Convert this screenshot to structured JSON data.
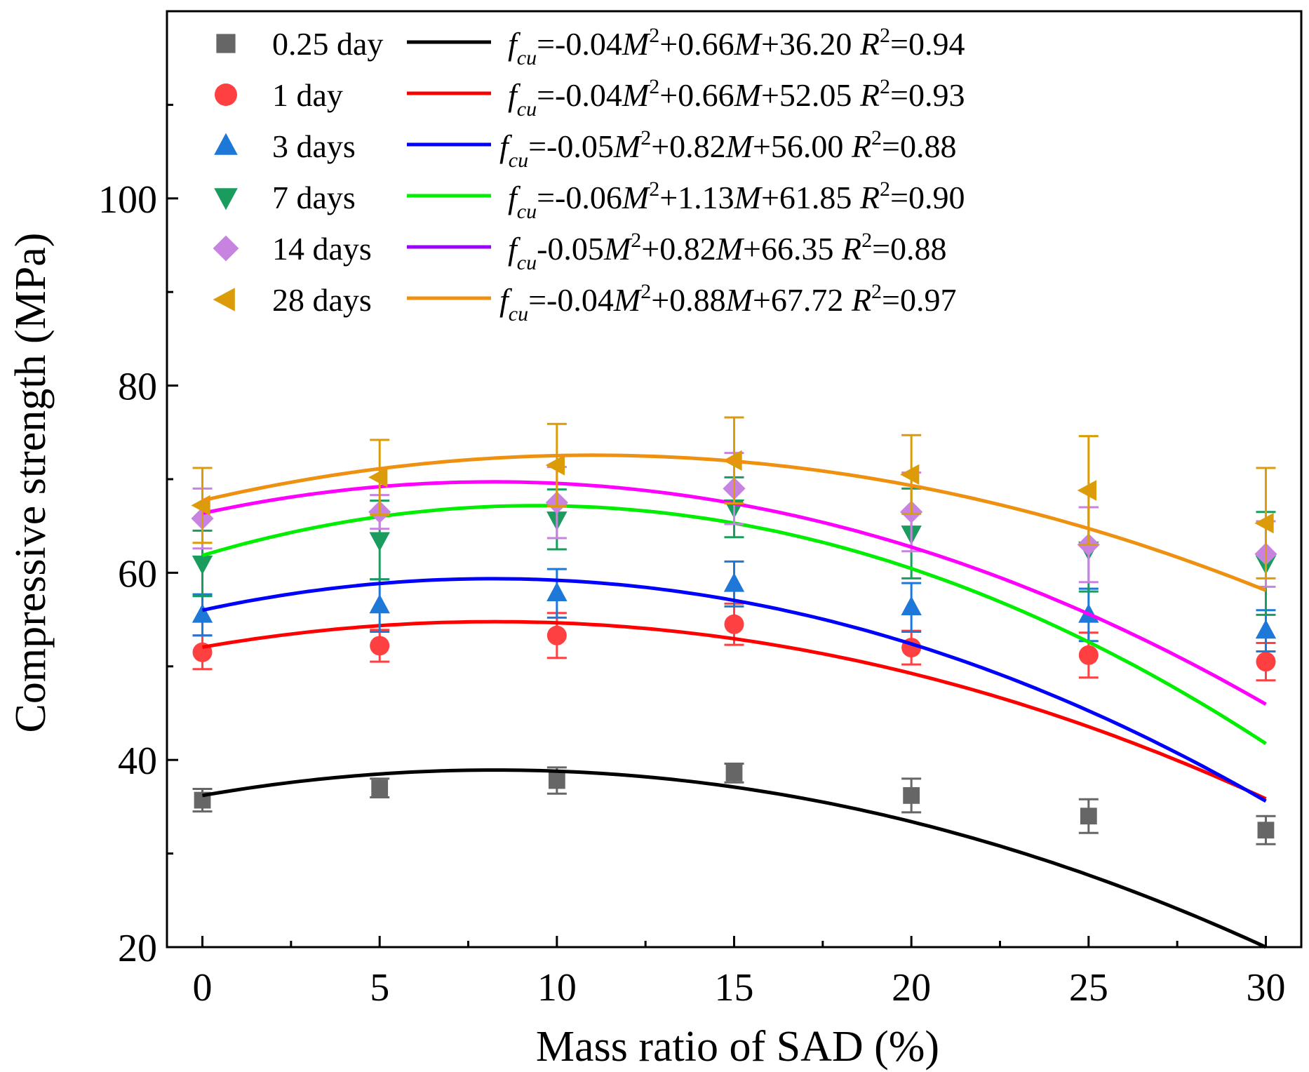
{
  "chart_data": {
    "type": "scatter",
    "title": "",
    "xlabel": "Mass ratio of SAD (%)",
    "ylabel": "Compressive strength (MPa)",
    "xlim": [
      -1,
      31
    ],
    "ylim": [
      20,
      120
    ],
    "xticks": [
      0,
      5,
      10,
      15,
      20,
      25,
      30
    ],
    "yticks": [
      20,
      40,
      60,
      80,
      100
    ],
    "x": [
      0,
      5,
      10,
      15,
      20,
      25,
      30
    ],
    "legend_position": "top-left",
    "series": [
      {
        "name": "0.25 day",
        "marker": "square",
        "marker_color": "#666666",
        "line_color": "#000000",
        "values": [
          35.7,
          37.0,
          37.8,
          38.6,
          36.2,
          34.0,
          32.5
        ],
        "errors": [
          1.2,
          1.0,
          1.4,
          1.0,
          1.8,
          1.8,
          1.5
        ],
        "fit": {
          "a": -0.04,
          "b": 0.66,
          "c": 36.2,
          "r2": 0.94
        },
        "equation": {
          "coef_a": "-0.04",
          "coef_b": "+0.66",
          "coef_c": "+36.20",
          "r2": "=0.94",
          "sep": "="
        }
      },
      {
        "name": "1 day",
        "marker": "circle",
        "marker_color": "#ff4040",
        "line_color": "#ff0000",
        "values": [
          51.5,
          52.2,
          53.3,
          54.5,
          52.0,
          51.2,
          50.5
        ],
        "errors": [
          1.8,
          1.7,
          2.4,
          2.2,
          1.8,
          2.4,
          2.0
        ],
        "fit": {
          "a": -0.04,
          "b": 0.66,
          "c": 52.05,
          "r2": 0.93
        },
        "equation": {
          "coef_a": "-0.04",
          "coef_b": "+0.66",
          "coef_c": "+52.05",
          "r2": "=0.93",
          "sep": "="
        }
      },
      {
        "name": "3 days",
        "marker": "triangle-up",
        "marker_color": "#1e78d8",
        "line_color": "#0000ff",
        "values": [
          55.5,
          56.5,
          57.8,
          58.8,
          56.3,
          55.5,
          53.8
        ],
        "errors": [
          2.2,
          2.8,
          2.6,
          2.4,
          2.6,
          2.8,
          2.2
        ],
        "fit": {
          "a": -0.05,
          "b": 0.82,
          "c": 56.0,
          "r2": 0.88
        },
        "equation": {
          "coef_a": "-0.05",
          "coef_b": "+0.82",
          "coef_c": "+56.00",
          "r2": "=0.88",
          "sep": "="
        }
      },
      {
        "name": "7 days",
        "marker": "triangle-down",
        "marker_color": "#1a9c5e",
        "line_color": "#00ee00",
        "values": [
          61.0,
          63.5,
          65.7,
          67.0,
          64.2,
          62.5,
          61.0
        ],
        "errors": [
          3.5,
          4.2,
          3.2,
          3.2,
          4.8,
          4.5,
          5.5
        ],
        "fit": {
          "a": -0.06,
          "b": 1.13,
          "c": 61.85,
          "r2": 0.9
        },
        "equation": {
          "coef_a": "-0.06",
          "coef_b": "+1.13",
          "coef_c": "+61.85",
          "r2": "=0.90",
          "sep": "="
        }
      },
      {
        "name": "14 days",
        "marker": "diamond",
        "marker_color": "#c883e0",
        "line_color": "#9900ff",
        "fit_line_color": "#ff00ff",
        "values": [
          65.8,
          66.5,
          67.5,
          69.0,
          66.5,
          63.0,
          62.0
        ],
        "errors": [
          3.2,
          1.8,
          3.8,
          3.8,
          4.2,
          4.0,
          3.5
        ],
        "fit": {
          "a": -0.05,
          "b": 0.82,
          "c": 66.35,
          "r2": 0.88
        },
        "equation": {
          "coef_a": "-0.05",
          "coef_b": "+0.82",
          "coef_c": "+66.35",
          "r2": "=0.88",
          "sep": ""
        }
      },
      {
        "name": "28 days",
        "marker": "triangle-left",
        "marker_color": "#dc9c0a",
        "line_color": "#ee9010",
        "values": [
          67.2,
          70.2,
          71.5,
          72.0,
          70.5,
          68.8,
          65.3
        ],
        "errors": [
          4.0,
          4.0,
          4.4,
          4.6,
          4.2,
          5.8,
          5.9
        ],
        "fit": {
          "a": -0.04,
          "b": 0.88,
          "c": 67.72,
          "r2": 0.97
        },
        "equation": {
          "coef_a": "-0.04",
          "coef_b": "+0.88",
          "coef_c": "+67.72",
          "r2": "=0.97",
          "sep": "="
        }
      }
    ]
  }
}
